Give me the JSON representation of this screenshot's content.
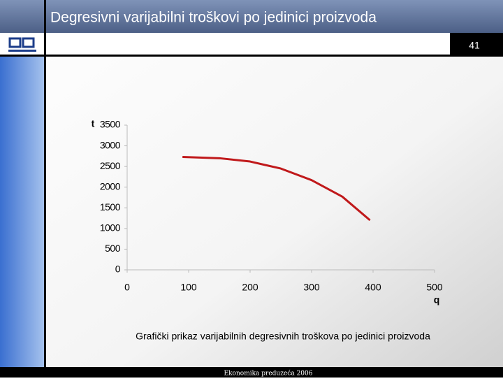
{
  "slide": {
    "title": "Degresivni varijabilni troškovi po jedinici proizvoda",
    "number": "41",
    "caption": "Grafički prikaz varijabilnih degresivnih troškova po jedinici proizvoda",
    "footer": "Ekonomika preduzeća 2006"
  },
  "chart_data": {
    "type": "line",
    "x_label": "q",
    "y_label": "t",
    "x": [
      90,
      150,
      200,
      250,
      300,
      350,
      395
    ],
    "series": [
      {
        "name": null,
        "color": "#c0191b",
        "values": [
          2730,
          2700,
          2620,
          2450,
          2170,
          1770,
          1200
        ]
      }
    ],
    "xlim": [
      0,
      500
    ],
    "xticks": [
      0,
      100,
      200,
      300,
      400,
      500
    ],
    "ylim": [
      0,
      3500
    ],
    "yticks": [
      0,
      500,
      1000,
      1500,
      2000,
      2500,
      3000,
      3500
    ]
  }
}
